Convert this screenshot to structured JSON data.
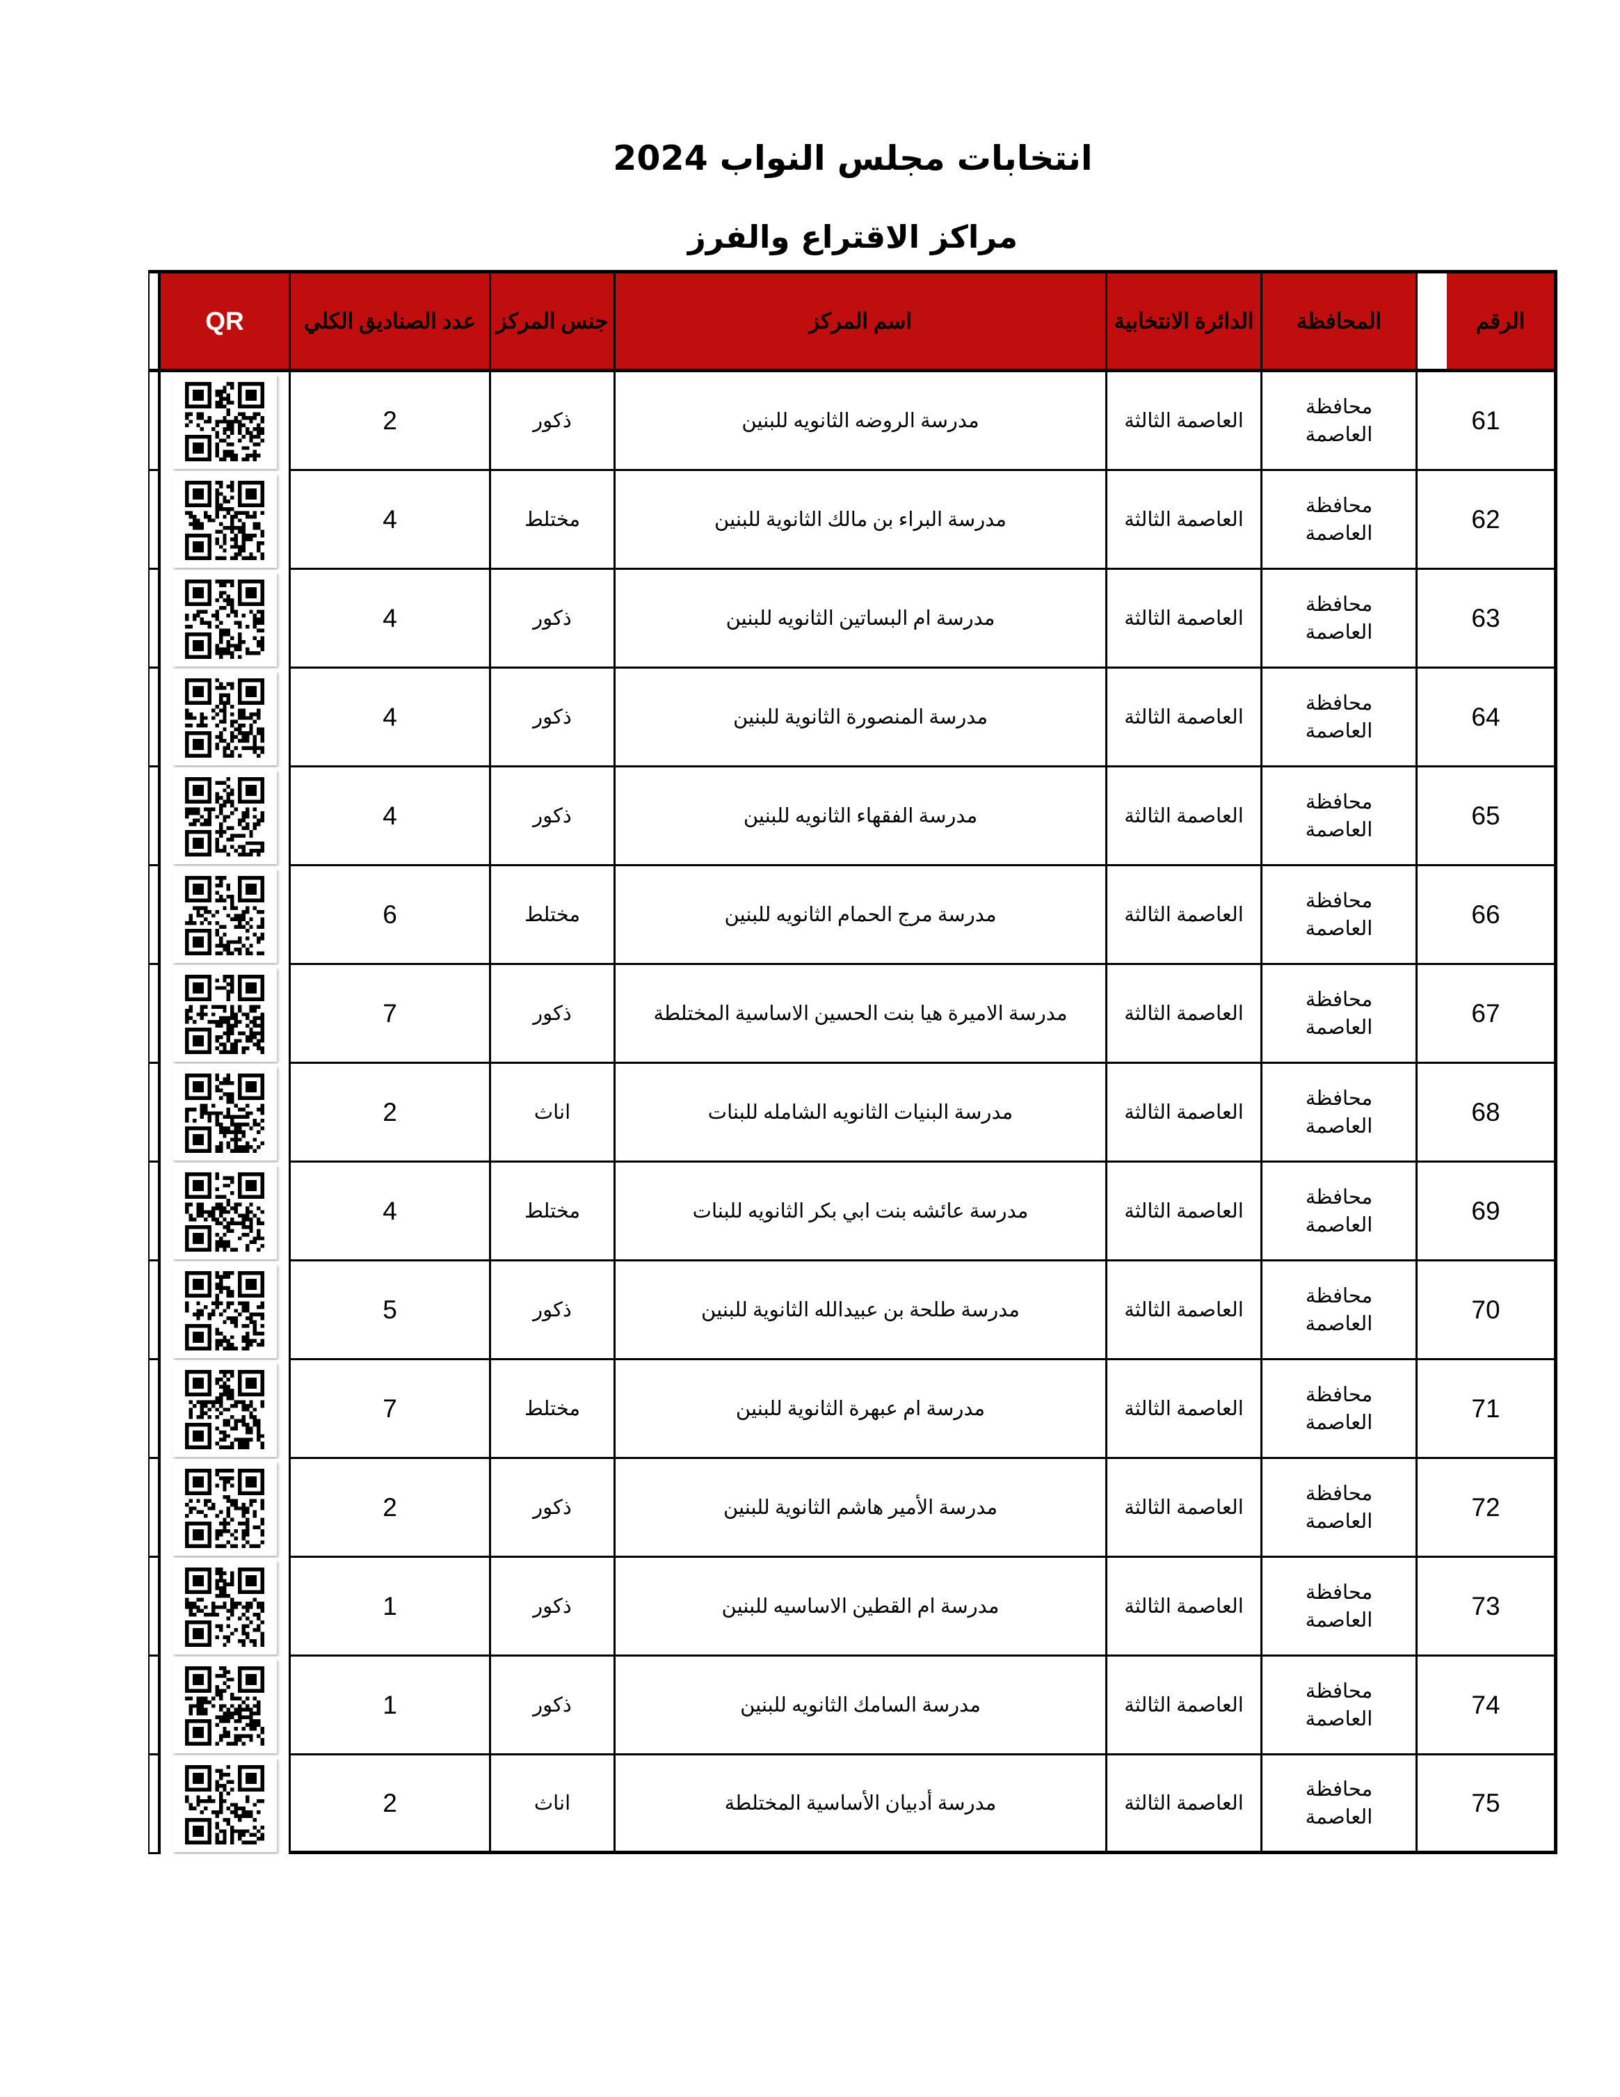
{
  "page": {
    "title": "انتخابات مجلس النواب 2024",
    "subtitle": "مراكز الاقتراع والفرز"
  },
  "table": {
    "accent_color": "#c00d0d",
    "header": {
      "number": "الرقم",
      "governorate": "المحافظة",
      "district": "الدائرة الانتخابية",
      "center_name": "اسم المركز",
      "center_gender": "جنس المركز",
      "total_boxes": "عدد الصناديق الكلي",
      "qr": "QR"
    },
    "rows": [
      {
        "number": "61",
        "governorate": "محافظة العاصمة",
        "district": "العاصمة الثالثة",
        "center_name": "مدرسة الروضه الثانويه للبنين",
        "center_gender": "ذكور",
        "total_boxes": "2"
      },
      {
        "number": "62",
        "governorate": "محافظة العاصمة",
        "district": "العاصمة الثالثة",
        "center_name": "مدرسة البراء بن مالك الثانوية للبنين",
        "center_gender": "مختلط",
        "total_boxes": "4"
      },
      {
        "number": "63",
        "governorate": "محافظة العاصمة",
        "district": "العاصمة الثالثة",
        "center_name": "مدرسة ام البساتين الثانويه للبنين",
        "center_gender": "ذكور",
        "total_boxes": "4"
      },
      {
        "number": "64",
        "governorate": "محافظة العاصمة",
        "district": "العاصمة الثالثة",
        "center_name": "مدرسة المنصورة الثانوية للبنين",
        "center_gender": "ذكور",
        "total_boxes": "4"
      },
      {
        "number": "65",
        "governorate": "محافظة العاصمة",
        "district": "العاصمة الثالثة",
        "center_name": "مدرسة الفقهاء الثانويه للبنين",
        "center_gender": "ذكور",
        "total_boxes": "4"
      },
      {
        "number": "66",
        "governorate": "محافظة العاصمة",
        "district": "العاصمة الثالثة",
        "center_name": "مدرسة مرج الحمام الثانويه للبنين",
        "center_gender": "مختلط",
        "total_boxes": "6"
      },
      {
        "number": "67",
        "governorate": "محافظة العاصمة",
        "district": "العاصمة الثالثة",
        "center_name": "مدرسة الاميرة هيا بنت الحسين الاساسية المختلطة",
        "center_gender": "ذكور",
        "total_boxes": "7"
      },
      {
        "number": "68",
        "governorate": "محافظة العاصمة",
        "district": "العاصمة الثالثة",
        "center_name": "مدرسة البنيات الثانويه الشامله للبنات",
        "center_gender": "اناث",
        "total_boxes": "2"
      },
      {
        "number": "69",
        "governorate": "محافظة العاصمة",
        "district": "العاصمة الثالثة",
        "center_name": "مدرسة عائشه بنت ابي بكر الثانويه للبنات",
        "center_gender": "مختلط",
        "total_boxes": "4"
      },
      {
        "number": "70",
        "governorate": "محافظة العاصمة",
        "district": "العاصمة الثالثة",
        "center_name": "مدرسة طلحة بن عبيدالله الثانوية للبنين",
        "center_gender": "ذكور",
        "total_boxes": "5"
      },
      {
        "number": "71",
        "governorate": "محافظة العاصمة",
        "district": "العاصمة الثالثة",
        "center_name": "مدرسة ام عبهرة الثانوية للبنين",
        "center_gender": "مختلط",
        "total_boxes": "7"
      },
      {
        "number": "72",
        "governorate": "محافظة العاصمة",
        "district": "العاصمة الثالثة",
        "center_name": "مدرسة الأمير هاشم الثانوية للبنين",
        "center_gender": "ذكور",
        "total_boxes": "2"
      },
      {
        "number": "73",
        "governorate": "محافظة العاصمة",
        "district": "العاصمة الثالثة",
        "center_name": "مدرسة ام القطين الاساسيه للبنين",
        "center_gender": "ذكور",
        "total_boxes": "1"
      },
      {
        "number": "74",
        "governorate": "محافظة العاصمة",
        "district": "العاصمة الثالثة",
        "center_name": "مدرسة السامك الثانويه للبنين",
        "center_gender": "ذكور",
        "total_boxes": "1"
      },
      {
        "number": "75",
        "governorate": "محافظة العاصمة",
        "district": "العاصمة الثالثة",
        "center_name": "مدرسة أدبيان الأساسية المختلطة",
        "center_gender": "اناث",
        "total_boxes": "2"
      }
    ]
  }
}
